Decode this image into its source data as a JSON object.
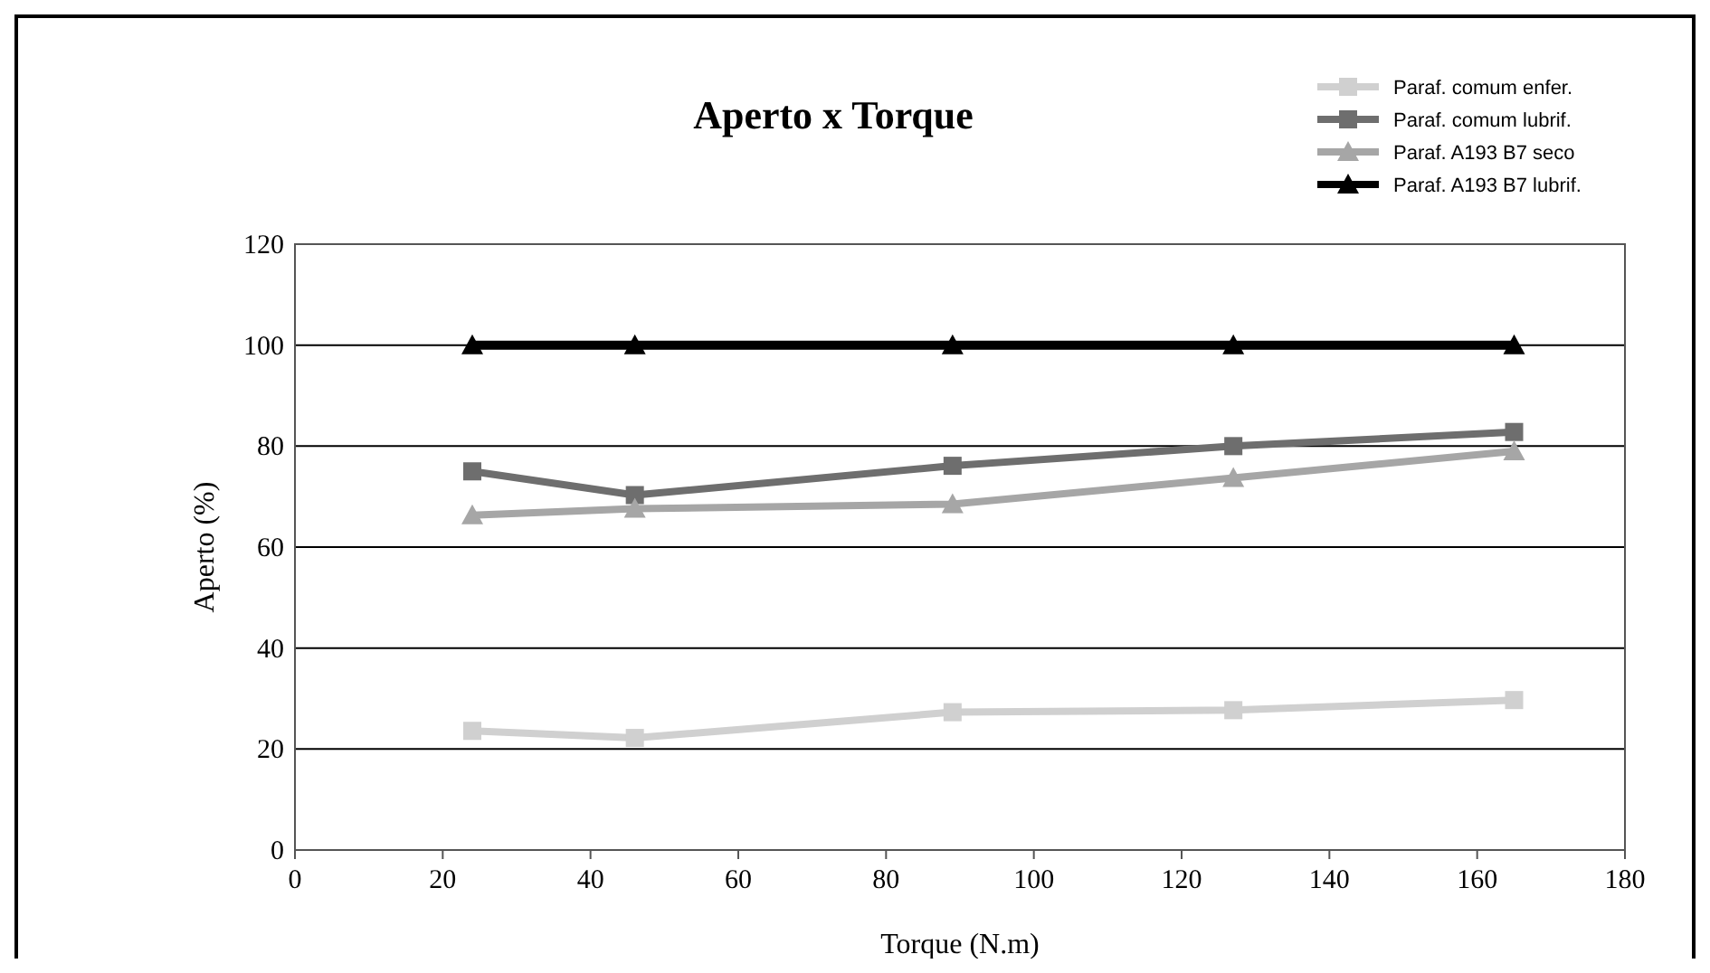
{
  "chart_data": {
    "type": "line",
    "title": "Aperto x Torque",
    "xlabel": "Torque (N.m)",
    "ylabel": "Aperto (%)",
    "x": [
      24,
      46,
      89,
      127,
      165
    ],
    "series": [
      {
        "name": "Paraf. comum enfer.",
        "color": "#d0d0d0",
        "marker": "square",
        "values": [
          23.6,
          22.2,
          27.3,
          27.7,
          29.7
        ]
      },
      {
        "name": "Paraf. comum lubrif.",
        "color": "#6e6e6e",
        "marker": "square",
        "values": [
          75,
          70.3,
          76.1,
          80,
          82.8
        ]
      },
      {
        "name": "Paraf. A193 B7 seco",
        "color": "#a6a6a6",
        "marker": "triangle",
        "values": [
          66.3,
          67.6,
          68.5,
          73.7,
          79
        ]
      },
      {
        "name": "Paraf. A193 B7 lubrif.",
        "color": "#000000",
        "marker": "triangle",
        "values": [
          100,
          100,
          100,
          100,
          100
        ]
      }
    ],
    "xlim": [
      0,
      180
    ],
    "xticks": [
      0,
      20,
      40,
      60,
      80,
      100,
      120,
      140,
      160,
      180
    ],
    "ylim": [
      0,
      120
    ],
    "yticks": [
      0,
      20,
      40,
      60,
      80,
      100,
      120
    ],
    "grid": "y",
    "legend": "top right"
  }
}
